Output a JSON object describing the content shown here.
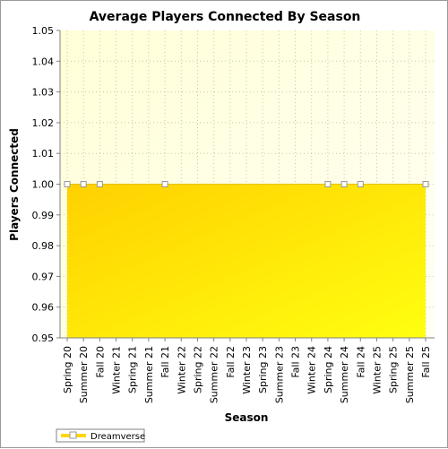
{
  "chart_data": {
    "type": "area",
    "title": "Average Players Connected By Season",
    "xlabel": "Season",
    "ylabel": "Players Connected",
    "ylim": [
      0.95,
      1.05
    ],
    "yticks": [
      0.95,
      0.96,
      0.97,
      0.98,
      0.99,
      1.0,
      1.01,
      1.02,
      1.03,
      1.04,
      1.05
    ],
    "ytick_labels": [
      "0.95",
      "0.96",
      "0.97",
      "0.98",
      "0.99",
      "1.00",
      "1.01",
      "1.02",
      "1.03",
      "1.04",
      "1.05"
    ],
    "grid": true,
    "legend_position": "bottom-left",
    "categories": [
      "Spring 20",
      "Summer 20",
      "Fall 20",
      "Winter 21",
      "Spring 21",
      "Summer 21",
      "Fall 21",
      "Winter 22",
      "Spring 22",
      "Summer 22",
      "Fall 22",
      "Winter 23",
      "Spring 23",
      "Summer 23",
      "Fall 23",
      "Winter 24",
      "Spring 24",
      "Summer 24",
      "Fall 24",
      "Winter 25",
      "Spring 25",
      "Summer 25",
      "Fall 25"
    ],
    "series": [
      {
        "name": "Dreamverse",
        "color": "#ffd700",
        "values": [
          1,
          1,
          1,
          1,
          1,
          1,
          1,
          1,
          1,
          1,
          1,
          1,
          1,
          1,
          1,
          1,
          1,
          1,
          1,
          1,
          1,
          1,
          1
        ],
        "marker_indices": [
          0,
          1,
          2,
          6,
          16,
          17,
          18,
          22
        ]
      }
    ],
    "colors": {
      "plot_bg_top": "#ffffe0",
      "plot_bg_bottom": "#fffff0",
      "fill_dark": "#ffd200",
      "fill_light": "#ffff10",
      "grid": "#c8c8a8",
      "marker_fill": "#ffffff",
      "marker_stroke": "#999999"
    }
  }
}
